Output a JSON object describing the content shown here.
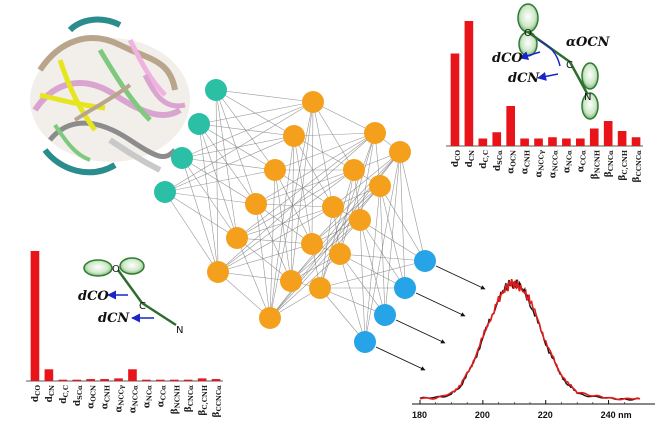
{
  "colors": {
    "bar": "#e8141a",
    "input_node": "#2bbfa6",
    "hidden_node": "#f5a01c",
    "output_node": "#27a4e8",
    "edge": "#7d7d7d",
    "spectrum_black": "#111111",
    "spectrum_red": "#e31a1c",
    "orbital": "#2e7d2e"
  },
  "icons": [
    "protein-ribbon-icon",
    "p-orbital-icon"
  ],
  "molecule_top": {
    "atoms": [
      "O",
      "C",
      "N"
    ],
    "labels": {
      "dco": "dCO",
      "dcn": "dCN",
      "angle": "αOCN"
    }
  },
  "molecule_bottom": {
    "atoms": [
      "O",
      "C",
      "N"
    ],
    "labels": {
      "dco": "dCO",
      "dcn": "dCN"
    }
  },
  "network": {
    "layers": [
      4,
      6,
      6,
      5,
      4
    ]
  },
  "chart_data": [
    {
      "type": "bar",
      "categories": [
        "dCO",
        "dCN",
        "dC,C",
        "dSCα",
        "αOCN",
        "αCNH",
        "αNCCγ",
        "αNCCα",
        "αNCα",
        "αCCα",
        "βNCNH",
        "βCNCα",
        "βC,CNH",
        "βCCNCα"
      ],
      "values": [
        0.74,
        1.0,
        0.06,
        0.11,
        0.32,
        0.06,
        0.06,
        0.07,
        0.06,
        0.06,
        0.14,
        0.2,
        0.12,
        0.07
      ]
    },
    {
      "type": "bar",
      "categories": [
        "dCO",
        "dCN",
        "dC,C",
        "dSCα",
        "αOCN",
        "αCNH",
        "αNCCγ",
        "αNCCα",
        "αNCα",
        "αCCα",
        "βNCNH",
        "βCNCα",
        "βC,CNH",
        "βCCNCα"
      ],
      "values": [
        1.0,
        0.09,
        0.01,
        0.01,
        0.015,
        0.015,
        0.02,
        0.09,
        0.01,
        0.01,
        0.01,
        0.01,
        0.02,
        0.015
      ]
    },
    {
      "type": "line",
      "x_ticks": [
        "180",
        "200",
        "220",
        "240 nm"
      ],
      "xlim": [
        180,
        250
      ],
      "series": [
        {
          "color": "#111111",
          "x": [
            180,
            185,
            190,
            193,
            196,
            199,
            202,
            205,
            207,
            209,
            210,
            211,
            213,
            215,
            218,
            221,
            224,
            227,
            230,
            235,
            240,
            245,
            250
          ],
          "y": [
            0.01,
            0.02,
            0.05,
            0.12,
            0.26,
            0.45,
            0.66,
            0.86,
            0.95,
            1.0,
            0.98,
            1.0,
            0.93,
            0.82,
            0.62,
            0.42,
            0.25,
            0.13,
            0.06,
            0.03,
            0.01,
            0.01,
            0.01
          ]
        },
        {
          "color": "#e31a1c",
          "x": [
            180,
            185,
            190,
            193,
            196,
            199,
            202,
            205,
            207,
            209,
            210,
            211,
            213,
            215,
            218,
            221,
            224,
            227,
            230,
            235,
            240,
            245,
            250
          ],
          "y": [
            0.01,
            0.02,
            0.06,
            0.13,
            0.27,
            0.46,
            0.67,
            0.85,
            0.94,
            0.99,
            0.98,
            0.97,
            0.92,
            0.84,
            0.64,
            0.43,
            0.26,
            0.14,
            0.07,
            0.03,
            0.02,
            0.01,
            0.01
          ]
        }
      ]
    }
  ]
}
